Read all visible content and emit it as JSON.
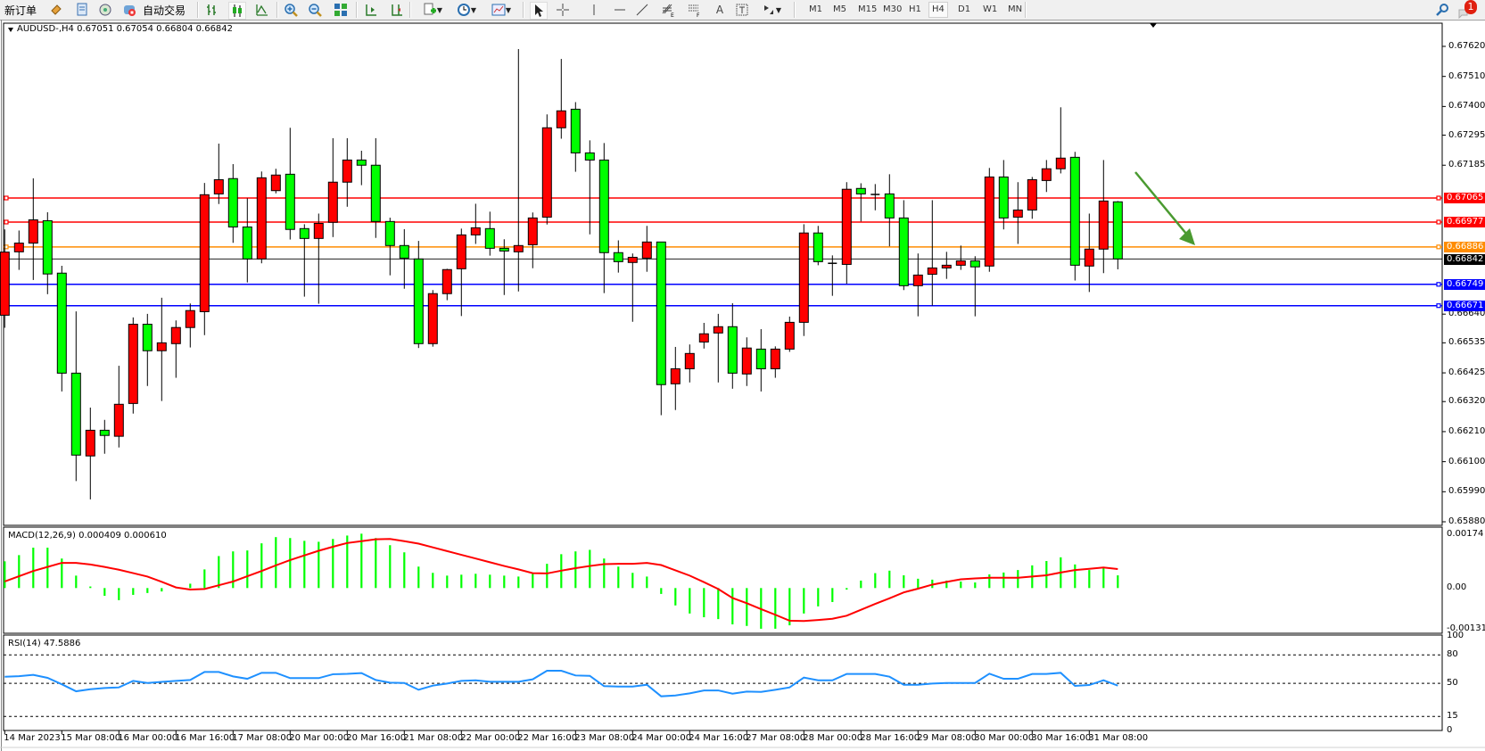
{
  "toolbar": {
    "new_order": "新订单",
    "auto_trading": "自动交易",
    "timeframes": [
      "M1",
      "M5",
      "M15",
      "M30",
      "H1",
      "H4",
      "D1",
      "W1",
      "MN"
    ],
    "selected_timeframe": "H4",
    "notification_count": "1",
    "icons": [
      "new-order-icon",
      "market-watch-icon",
      "data-window-icon",
      "navigator-icon",
      "signals-icon",
      "auto-trading-icon",
      "bar-chart-icon",
      "candlestick-icon",
      "line-chart-icon",
      "zoom-in-icon",
      "zoom-out-icon",
      "tile-windows-icon",
      "chart-shift-icon",
      "auto-scroll-icon",
      "indicators-icon",
      "periods-icon",
      "templates-icon",
      "cursor-icon",
      "crosshair-icon",
      "vertical-line-icon",
      "horizontal-line-icon",
      "trendline-icon",
      "fibonacci-icon",
      "fibonacci-fan-icon",
      "text-icon",
      "text-label-icon",
      "arrows-icon",
      "search-icon",
      "notification-icon"
    ]
  },
  "chart": {
    "header": "AUDUSD-,H4  0.67051 0.67054 0.66804 0.66842",
    "macd_header": "MACD(12,26,9) 0.000409 0.000610",
    "rsi_header": "RSI(14) 47.5886"
  },
  "chart_data": [
    {
      "type": "candlestick",
      "symbol": "AUDUSD-",
      "timeframe": "H4",
      "up_color": "#ff0000",
      "down_color": "#00ff00",
      "ylim": [
        0.6588,
        0.6762
      ],
      "y_ticks": [
        "0.67620",
        "0.67510",
        "0.67400",
        "0.67295",
        "0.67185",
        "0.66640",
        "0.66535",
        "0.66425",
        "0.66320",
        "0.66210",
        "0.66100",
        "0.65990",
        "0.65880"
      ],
      "x_tick_labels": [
        "14 Mar 2023",
        "15 Mar 08:00",
        "16 Mar 00:00",
        "16 Mar 16:00",
        "17 Mar 08:00",
        "20 Mar 00:00",
        "20 Mar 16:00",
        "21 Mar 08:00",
        "22 Mar 00:00",
        "22 Mar 16:00",
        "23 Mar 08:00",
        "24 Mar 00:00",
        "24 Mar 16:00",
        "27 Mar 08:00",
        "28 Mar 00:00",
        "28 Mar 16:00",
        "29 Mar 08:00",
        "30 Mar 00:00",
        "30 Mar 16:00",
        "31 Mar 08:00"
      ],
      "ohlc": [
        [
          0.66636,
          0.6695,
          0.6659,
          0.66867
        ],
        [
          0.66868,
          0.66946,
          0.66802,
          0.669
        ],
        [
          0.669,
          0.67137,
          0.66765,
          0.66985
        ],
        [
          0.66982,
          0.67013,
          0.66713,
          0.66787
        ],
        [
          0.6679,
          0.66817,
          0.66357,
          0.66424
        ],
        [
          0.66424,
          0.6665,
          0.66029,
          0.66124
        ],
        [
          0.66121,
          0.66298,
          0.65962,
          0.66215
        ],
        [
          0.66215,
          0.66253,
          0.66129,
          0.66196
        ],
        [
          0.66193,
          0.66451,
          0.66152,
          0.6631
        ],
        [
          0.66313,
          0.66628,
          0.66276,
          0.66603
        ],
        [
          0.66603,
          0.66641,
          0.66377,
          0.66506
        ],
        [
          0.66506,
          0.667,
          0.66322,
          0.66535
        ],
        [
          0.66532,
          0.66617,
          0.66407,
          0.66591
        ],
        [
          0.66591,
          0.66679,
          0.66518,
          0.66653
        ],
        [
          0.66649,
          0.6712,
          0.66563,
          0.67077
        ],
        [
          0.6708,
          0.67264,
          0.67043,
          0.67132
        ],
        [
          0.67136,
          0.67189,
          0.66901,
          0.66959
        ],
        [
          0.66959,
          0.67064,
          0.66756,
          0.66842
        ],
        [
          0.66842,
          0.67162,
          0.66826,
          0.67139
        ],
        [
          0.67092,
          0.67172,
          0.67082,
          0.67149
        ],
        [
          0.67152,
          0.67322,
          0.66913,
          0.6695
        ],
        [
          0.66953,
          0.66969,
          0.66704,
          0.66917
        ],
        [
          0.66917,
          0.67008,
          0.66678,
          0.66972
        ],
        [
          0.66976,
          0.67284,
          0.66922,
          0.67123
        ],
        [
          0.67123,
          0.67284,
          0.67033,
          0.67204
        ],
        [
          0.67204,
          0.67238,
          0.67112,
          0.67185
        ],
        [
          0.67185,
          0.67284,
          0.66919,
          0.66979
        ],
        [
          0.66979,
          0.66993,
          0.66782,
          0.66891
        ],
        [
          0.66891,
          0.66951,
          0.66733,
          0.66845
        ],
        [
          0.66842,
          0.66908,
          0.66516,
          0.66532
        ],
        [
          0.66532,
          0.66728,
          0.66521,
          0.66715
        ],
        [
          0.66715,
          0.66806,
          0.66691,
          0.66803
        ],
        [
          0.66806,
          0.66953,
          0.66633,
          0.6693
        ],
        [
          0.6693,
          0.67044,
          0.66897,
          0.66956
        ],
        [
          0.66953,
          0.67015,
          0.66854,
          0.66881
        ],
        [
          0.66881,
          0.66914,
          0.6671,
          0.66871
        ],
        [
          0.66868,
          0.6761,
          0.66723,
          0.66891
        ],
        [
          0.66894,
          0.67012,
          0.66808,
          0.66992
        ],
        [
          0.66995,
          0.67371,
          0.66968,
          0.67322
        ],
        [
          0.67322,
          0.67574,
          0.67282,
          0.67384
        ],
        [
          0.6739,
          0.67416,
          0.67161,
          0.6723
        ],
        [
          0.6723,
          0.67276,
          0.66932,
          0.67204
        ],
        [
          0.67204,
          0.67266,
          0.66717,
          0.66865
        ],
        [
          0.66865,
          0.6691,
          0.66792,
          0.66832
        ],
        [
          0.66829,
          0.66862,
          0.66612,
          0.66848
        ],
        [
          0.66845,
          0.66963,
          0.66795,
          0.66904
        ],
        [
          0.66904,
          0.66904,
          0.6627,
          0.66382
        ],
        [
          0.66385,
          0.6652,
          0.66289,
          0.6644
        ],
        [
          0.6644,
          0.66529,
          0.6639,
          0.66496
        ],
        [
          0.66538,
          0.66608,
          0.66514,
          0.66568
        ],
        [
          0.66571,
          0.66641,
          0.6639,
          0.66594
        ],
        [
          0.66594,
          0.6668,
          0.66367,
          0.66424
        ],
        [
          0.66421,
          0.66555,
          0.66377,
          0.66516
        ],
        [
          0.66512,
          0.66585,
          0.66357,
          0.6644
        ],
        [
          0.6644,
          0.66522,
          0.66407,
          0.66512
        ],
        [
          0.66512,
          0.66631,
          0.66502,
          0.6661
        ],
        [
          0.6661,
          0.66969,
          0.6656,
          0.66937
        ],
        [
          0.66937,
          0.66963,
          0.66819,
          0.66832
        ],
        [
          0.66827,
          0.66855,
          0.66707,
          0.66826
        ],
        [
          0.66822,
          0.67123,
          0.66751,
          0.67097
        ],
        [
          0.671,
          0.67119,
          0.66979,
          0.6708
        ],
        [
          0.67079,
          0.67116,
          0.6702,
          0.67078
        ],
        [
          0.6708,
          0.67152,
          0.66888,
          0.66992
        ],
        [
          0.66992,
          0.67057,
          0.66728,
          0.66744
        ],
        [
          0.66744,
          0.66862,
          0.66632,
          0.66783
        ],
        [
          0.66786,
          0.67057,
          0.66671,
          0.66809
        ],
        [
          0.66809,
          0.66868,
          0.66769,
          0.66819
        ],
        [
          0.66819,
          0.66891,
          0.66802,
          0.66835
        ],
        [
          0.66835,
          0.66852,
          0.66632,
          0.66813
        ],
        [
          0.66816,
          0.67175,
          0.66795,
          0.67142
        ],
        [
          0.67142,
          0.67204,
          0.6695,
          0.66992
        ],
        [
          0.66995,
          0.67123,
          0.66897,
          0.67021
        ],
        [
          0.67021,
          0.67142,
          0.66989,
          0.67132
        ],
        [
          0.67129,
          0.67204,
          0.67087,
          0.67172
        ],
        [
          0.67172,
          0.67397,
          0.67155,
          0.67211
        ],
        [
          0.67214,
          0.67234,
          0.66763,
          0.66819
        ],
        [
          0.66816,
          0.67008,
          0.66721,
          0.66878
        ],
        [
          0.66878,
          0.67204,
          0.6679,
          0.67054
        ],
        [
          0.67051,
          0.67054,
          0.66804,
          0.66842
        ]
      ],
      "current_price": {
        "value": 0.66842,
        "label": "0.66842",
        "color": "#000000"
      },
      "horizontal_lines": [
        {
          "value": 0.67065,
          "label": "0.67065",
          "color": "#ff0000"
        },
        {
          "value": 0.66977,
          "label": "0.66977",
          "color": "#ff0000"
        },
        {
          "value": 0.66886,
          "label": "0.66886",
          "color": "#ff8c00"
        },
        {
          "value": 0.66749,
          "label": "0.66749",
          "color": "#0000ff"
        },
        {
          "value": 0.66671,
          "label": "0.66671",
          "color": "#0000ff"
        }
      ],
      "annotation_arrow": {
        "color": "#4a9a30",
        "direction": "down-right"
      }
    },
    {
      "type": "bar",
      "indicator": "MACD(12,26,9)",
      "ylim": [
        -0.001314,
        0.00174
      ],
      "y_ticks": [
        "0.00174",
        "0.00",
        "-0.001314"
      ],
      "histogram_color": "#00ff00",
      "signal_color": "#ff0000",
      "histogram": [
        0.00086,
        0.00106,
        0.0013,
        0.0013,
        0.00095,
        0.0004,
        5e-05,
        -0.00025,
        -0.00039,
        -0.00022,
        -0.00016,
        -0.00011,
        1e-05,
        0.00014,
        0.0006,
        0.00103,
        0.00118,
        0.00121,
        0.00144,
        0.00164,
        0.00161,
        0.00152,
        0.00149,
        0.00158,
        0.00169,
        0.00175,
        0.00161,
        0.00138,
        0.00115,
        0.00069,
        0.00049,
        0.0004,
        0.00043,
        0.00046,
        0.00043,
        0.0004,
        0.00037,
        0.00046,
        0.00078,
        0.00109,
        0.00118,
        0.00123,
        0.00095,
        0.00069,
        0.00049,
        0.00037,
        -0.00019,
        -0.00056,
        -0.00082,
        -0.00094,
        -0.001,
        -0.00117,
        -0.00122,
        -0.00131,
        -0.00131,
        -0.0012,
        -0.00082,
        -0.00059,
        -0.00045,
        -5e-05,
        0.00024,
        0.00048,
        0.00056,
        0.00041,
        0.0003,
        0.00027,
        0.00024,
        0.00021,
        0.00018,
        0.00044,
        0.0005,
        0.00058,
        0.00073,
        0.00087,
        0.00099,
        0.00076,
        0.00058,
        0.00064,
        0.000409
      ],
      "signal": [
        0.00021,
        0.00038,
        0.00055,
        0.00068,
        0.00081,
        0.00081,
        0.00076,
        0.00068,
        0.00059,
        0.00048,
        0.00037,
        0.0002,
        2e-05,
        -5e-05,
        -3e-05,
        9e-05,
        0.00021,
        0.00038,
        0.00055,
        0.00073,
        0.0009,
        0.00105,
        0.0012,
        0.00133,
        0.00145,
        0.00151,
        0.00157,
        0.00158,
        0.00151,
        0.00143,
        0.00131,
        0.00119,
        0.00107,
        0.00095,
        0.00083,
        0.00071,
        0.0006,
        0.00048,
        0.00047,
        0.00056,
        0.00064,
        0.00071,
        0.00077,
        0.00078,
        0.00078,
        0.00081,
        0.00074,
        0.00057,
        0.0004,
        0.00019,
        -3e-05,
        -0.00032,
        -0.00049,
        -0.00068,
        -0.00086,
        -0.00105,
        -0.00106,
        -0.00103,
        -0.00099,
        -0.00089,
        -0.0007,
        -0.00051,
        -0.00033,
        -0.00014,
        -2e-05,
        0.00011,
        0.0002,
        0.00028,
        0.00031,
        0.00033,
        0.00033,
        0.00033,
        0.00037,
        0.00041,
        0.0005,
        0.00058,
        0.00062,
        0.00066,
        0.00061
      ]
    },
    {
      "type": "line",
      "indicator": "RSI(14)",
      "ylim": [
        0,
        100
      ],
      "y_ticks": [
        "100",
        "80",
        "50",
        "15",
        "0"
      ],
      "levels": [
        80,
        50,
        15
      ],
      "color": "#1e90ff",
      "values": [
        57.0,
        57.5,
        58.9,
        55.8,
        49.0,
        41.6,
        43.8,
        45.0,
        45.7,
        52.6,
        50.4,
        51.5,
        52.6,
        53.5,
        62.0,
        62.0,
        57.3,
        54.8,
        61.1,
        61.1,
        55.5,
        55.5,
        55.5,
        59.6,
        60.0,
        60.8,
        53.5,
        50.7,
        50.4,
        43.2,
        47.6,
        49.8,
        52.6,
        53.2,
        51.7,
        51.7,
        51.7,
        54.2,
        63.3,
        63.3,
        58.3,
        57.9,
        47.0,
        46.6,
        46.6,
        48.5,
        36.3,
        37.2,
        39.4,
        42.5,
        42.5,
        39.1,
        41.3,
        40.9,
        43.2,
        45.7,
        56.1,
        53.2,
        53.2,
        59.9,
        59.9,
        59.9,
        57.0,
        48.5,
        48.5,
        49.8,
        50.4,
        50.4,
        50.4,
        60.2,
        54.8,
        54.8,
        59.9,
        59.9,
        61.1,
        47.3,
        48.2,
        53.2,
        47.5886
      ]
    }
  ]
}
